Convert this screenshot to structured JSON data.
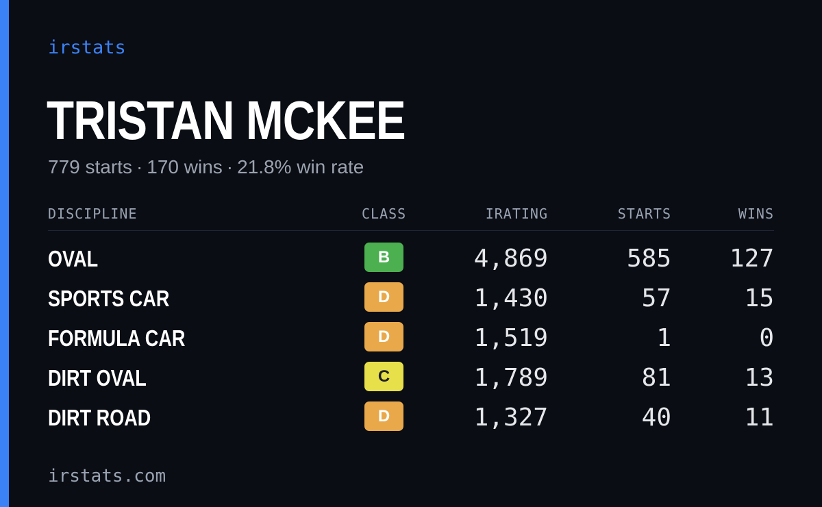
{
  "brand": "irstats",
  "player": {
    "name": "TRISTAN MCKEE",
    "starts": "779 starts",
    "wins": "170 wins",
    "win_rate": "21.8% win rate",
    "separator": "·"
  },
  "table": {
    "headers": {
      "discipline": "DISCIPLINE",
      "class": "CLASS",
      "irating": "IRATING",
      "starts": "STARTS",
      "wins": "WINS"
    },
    "rows": [
      {
        "discipline": "OVAL",
        "class": "B",
        "class_color": "#4caf50",
        "irating": "4,869",
        "starts": "585",
        "wins": "127"
      },
      {
        "discipline": "SPORTS CAR",
        "class": "D",
        "class_color": "#e9a94b",
        "irating": "1,430",
        "starts": "57",
        "wins": "15"
      },
      {
        "discipline": "FORMULA CAR",
        "class": "D",
        "class_color": "#e9a94b",
        "irating": "1,519",
        "starts": "1",
        "wins": "0"
      },
      {
        "discipline": "DIRT OVAL",
        "class": "C",
        "class_color": "#e8e04a",
        "irating": "1,789",
        "starts": "81",
        "wins": "13"
      },
      {
        "discipline": "DIRT ROAD",
        "class": "D",
        "class_color": "#e9a94b",
        "irating": "1,327",
        "starts": "40",
        "wins": "11"
      }
    ]
  },
  "footer": "irstats.com",
  "colors": {
    "accent": "#3b82f6",
    "background": "#0a0d14"
  }
}
